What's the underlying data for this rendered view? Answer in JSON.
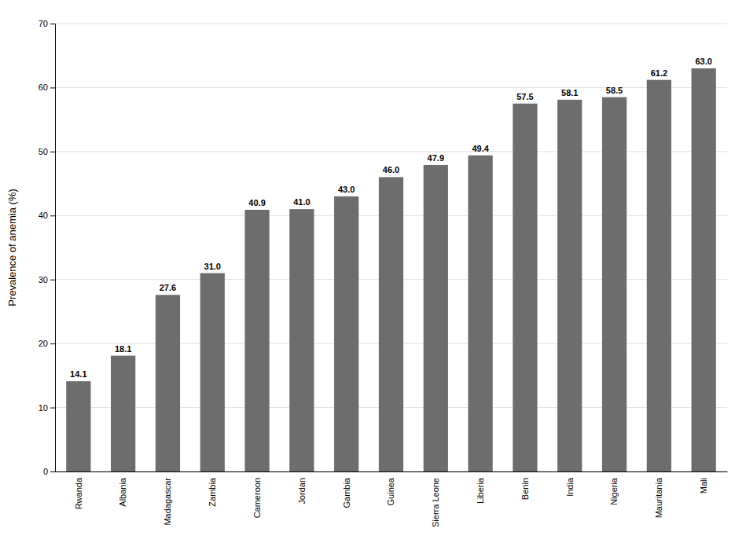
{
  "chart_data": {
    "type": "bar",
    "categories": [
      "Rwanda",
      "Albania",
      "Madagascar",
      "Zambia",
      "Cameroon",
      "Jordan",
      "Gambia",
      "Guinea",
      "Sierra Leone",
      "Liberia",
      "Benin",
      "India",
      "Nigeria",
      "Mauritania",
      "Mali"
    ],
    "values": [
      14.1,
      18.1,
      27.6,
      31.0,
      40.9,
      41.0,
      43.0,
      46.0,
      47.9,
      49.4,
      57.5,
      58.1,
      58.5,
      61.2,
      63.0
    ],
    "value_labels": [
      "14.1",
      "18.1",
      "27.6",
      "31.0",
      "40.9",
      "41.0",
      "43.0",
      "46.0",
      "47.9",
      "49.4",
      "57.5",
      "58.1",
      "58.5",
      "61.2",
      "63.0"
    ],
    "color": "#6d6d6d",
    "ylabel": "Prevalence of anemia (%)",
    "ylim": [
      0,
      70
    ],
    "yticks": [
      0,
      10,
      20,
      30,
      40,
      50,
      60,
      70
    ],
    "grid": true,
    "data_labels": true
  }
}
